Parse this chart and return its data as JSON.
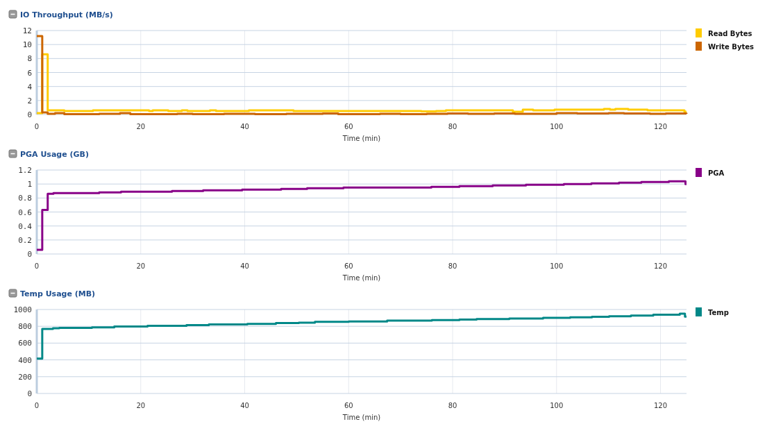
{
  "chart_data": [
    {
      "type": "step",
      "title": "IO Throughput (MB/s)",
      "xlabel": "Time (min)",
      "xlim": [
        0,
        125
      ],
      "xticks": [
        0,
        20,
        40,
        60,
        80,
        100,
        120
      ],
      "ylim": [
        0,
        12
      ],
      "yticks": [
        0,
        2,
        4,
        6,
        8,
        10,
        12
      ],
      "grid": true,
      "legend": "top right",
      "series": [
        {
          "name": "Read Bytes",
          "color": "#ffcc00",
          "x": [
            0,
            1.05,
            2.1,
            5.3,
            10.8,
            21.6,
            22.3,
            25.3,
            27.9,
            29,
            33.3,
            34.5,
            40.8,
            49.4,
            74,
            76.8,
            78.7,
            91.6,
            93.5,
            95.5,
            99.6,
            109.1,
            110.3,
            111.3,
            113.8,
            117.5,
            124.6,
            125
          ],
          "values": [
            0.2,
            8.6,
            0.6,
            0.5,
            0.6,
            0.5,
            0.6,
            0.5,
            0.6,
            0.5,
            0.6,
            0.5,
            0.6,
            0.5,
            0.45,
            0.5,
            0.6,
            0.4,
            0.7,
            0.6,
            0.7,
            0.8,
            0.7,
            0.8,
            0.7,
            0.6,
            0.4,
            0.4
          ]
        },
        {
          "name": "Write Bytes",
          "color": "#cc6600",
          "x": [
            0,
            1.05,
            2.1,
            3.5,
            5.3,
            10.8,
            12,
            16,
            18,
            27,
            30,
            36,
            42,
            48,
            55,
            58,
            66,
            70,
            75,
            79,
            83,
            88,
            92,
            100,
            104,
            110,
            113,
            118,
            121,
            125
          ],
          "values": [
            11.2,
            0.3,
            0.1,
            0.2,
            0.05,
            0.05,
            0.1,
            0.2,
            0.05,
            0.1,
            0.05,
            0.1,
            0.05,
            0.1,
            0.15,
            0.05,
            0.1,
            0.05,
            0.1,
            0.15,
            0.1,
            0.15,
            0.1,
            0.2,
            0.15,
            0.2,
            0.15,
            0.1,
            0.15,
            0.1
          ]
        }
      ]
    },
    {
      "type": "step",
      "title": "PGA Usage (GB)",
      "xlabel": "Time (min)",
      "xlim": [
        0,
        125
      ],
      "xticks": [
        0,
        20,
        40,
        60,
        80,
        100,
        120
      ],
      "ylim": [
        0,
        1.2
      ],
      "yticks": [
        0,
        0.2,
        0.4,
        0.6,
        0.8,
        1,
        1.2
      ],
      "grid": true,
      "legend": "top right",
      "series": [
        {
          "name": "PGA",
          "color": "#880088",
          "x": [
            0,
            1.05,
            2.1,
            3.2,
            12,
            16.2,
            26,
            32,
            39.5,
            47,
            52,
            59,
            75.9,
            81.3,
            87.7,
            94.1,
            101.4,
            106.7,
            112,
            116.3,
            121.6,
            124.8,
            125
          ],
          "values": [
            0.06,
            0.63,
            0.86,
            0.87,
            0.88,
            0.89,
            0.9,
            0.91,
            0.92,
            0.93,
            0.94,
            0.95,
            0.96,
            0.97,
            0.98,
            0.99,
            1.0,
            1.01,
            1.02,
            1.03,
            1.04,
            1.0,
            1.0
          ]
        }
      ]
    },
    {
      "type": "step",
      "title": "Temp Usage (MB)",
      "xlabel": "Time (min)",
      "xlim": [
        0,
        125
      ],
      "xticks": [
        0,
        20,
        40,
        60,
        80,
        100,
        120
      ],
      "ylim": [
        0,
        1000
      ],
      "yticks": [
        0,
        200,
        400,
        600,
        800,
        1000
      ],
      "grid": true,
      "legend": "top right",
      "series": [
        {
          "name": "Temp",
          "color": "#008888",
          "x": [
            0,
            1.05,
            3.1,
            4.3,
            10.6,
            14.9,
            21.3,
            28.8,
            33.1,
            40.5,
            46,
            50.4,
            53.5,
            60,
            67.4,
            76,
            81.3,
            84.6,
            90.9,
            97.4,
            102.6,
            106.8,
            110.1,
            114.3,
            118.6,
            123.7,
            124.7,
            125
          ],
          "values": [
            415,
            768,
            777,
            782,
            788,
            797,
            806,
            815,
            823,
            829,
            838,
            844,
            853,
            858,
            867,
            873,
            880,
            887,
            893,
            900,
            906,
            913,
            920,
            927,
            938,
            950,
            915,
            915
          ]
        }
      ]
    }
  ]
}
